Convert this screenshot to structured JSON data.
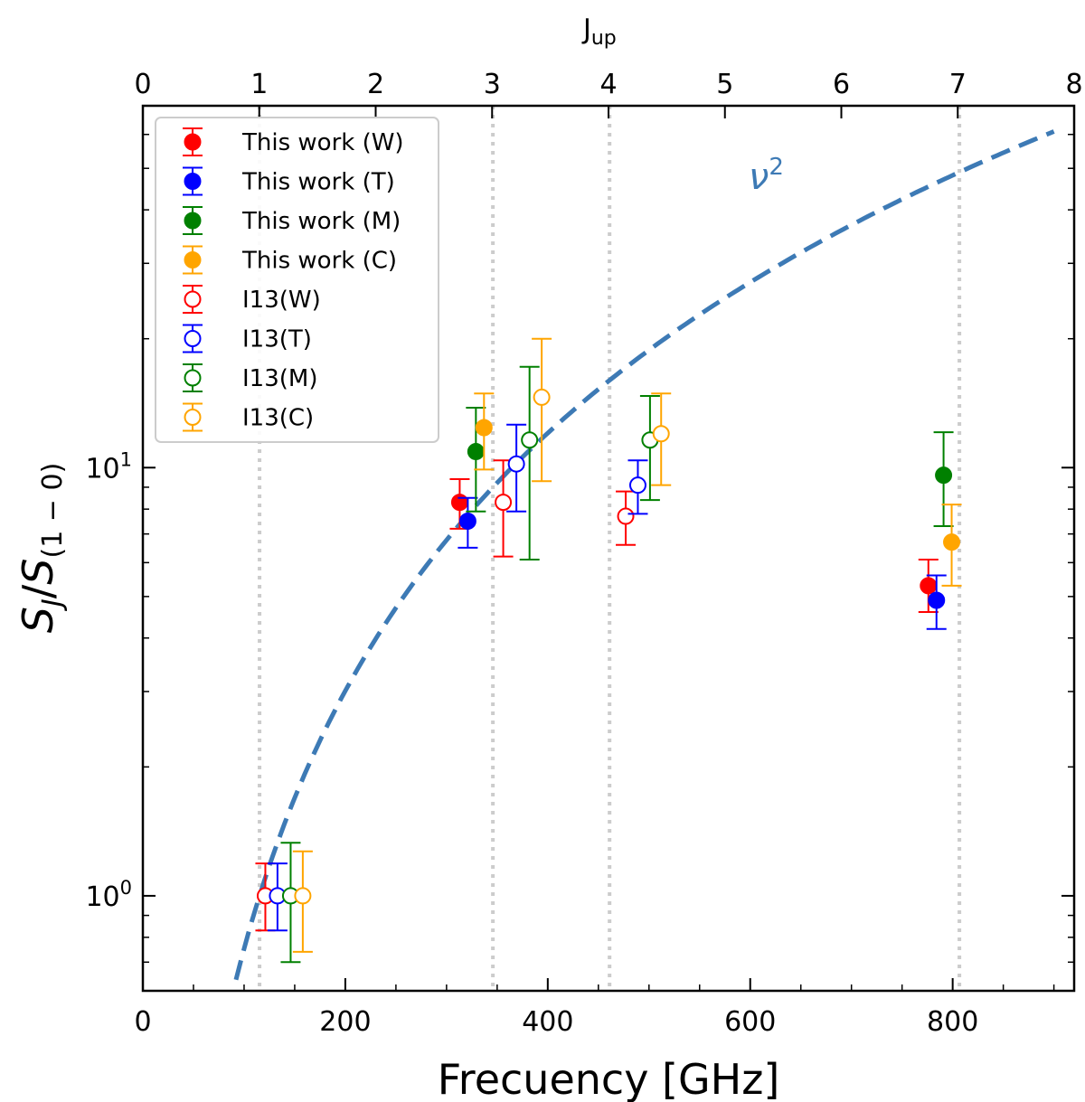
{
  "chart_data": {
    "type": "scatter",
    "xlabel": "Frecuency [GHz]",
    "ylabel_main": "S",
    "ylabel_sub_j": "J",
    "ylabel_sub_ref": "(1 − 0)",
    "top_xlabel": "J",
    "top_xlabel_sub": "up",
    "xlim": [
      0,
      920
    ],
    "ylim_log": [
      0.6,
      70
    ],
    "x_ticks": [
      0,
      200,
      400,
      600,
      800
    ],
    "x_tick_labels": [
      "0",
      "200",
      "400",
      "600",
      "800"
    ],
    "top_ticks": [
      0,
      1,
      2,
      3,
      4,
      5,
      6,
      7,
      8
    ],
    "top_tick_labels": [
      "0",
      "1",
      "2",
      "3",
      "4",
      "5",
      "6",
      "7",
      "8"
    ],
    "y_ticks": [
      1,
      10
    ],
    "y_tick_base": "10",
    "y_tick_exponents": [
      "0",
      "1"
    ],
    "reference_lines_ghz": [
      115.27,
      345.8,
      461.04,
      806.65
    ],
    "curve": {
      "label_main": "ν",
      "label_exp": "2",
      "color": "#3d7ab5",
      "type": "nu_squared",
      "ref_freq_ghz": 115.27
    },
    "legend": [
      {
        "label": "This work (W)",
        "color": "#ff0000",
        "filled": true
      },
      {
        "label": "This work (T)",
        "color": "#0000ff",
        "filled": true
      },
      {
        "label": "This work (M)",
        "color": "#008000",
        "filled": true
      },
      {
        "label": "This work (C)",
        "color": "#ffa500",
        "filled": true
      },
      {
        "label": "I13(W)",
        "color": "#ff0000",
        "filled": false
      },
      {
        "label": "I13(T)",
        "color": "#0000ff",
        "filled": false
      },
      {
        "label": "I13(M)",
        "color": "#008000",
        "filled": false
      },
      {
        "label": "I13(C)",
        "color": "#ffa500",
        "filled": false
      }
    ],
    "series": [
      {
        "name": "This work (W)",
        "color": "#ff0000",
        "filled": true,
        "points": [
          {
            "x": 313,
            "y": 8.3,
            "lo": 7.2,
            "hi": 9.4
          },
          {
            "x": 776,
            "y": 5.3,
            "lo": 4.6,
            "hi": 6.1
          }
        ]
      },
      {
        "name": "This work (T)",
        "color": "#0000ff",
        "filled": true,
        "points": [
          {
            "x": 321,
            "y": 7.5,
            "lo": 6.5,
            "hi": 8.5
          },
          {
            "x": 784,
            "y": 4.9,
            "lo": 4.2,
            "hi": 5.6
          }
        ]
      },
      {
        "name": "This work (M)",
        "color": "#008000",
        "filled": true,
        "points": [
          {
            "x": 329,
            "y": 10.9,
            "lo": 7.9,
            "hi": 13.8
          },
          {
            "x": 791,
            "y": 9.6,
            "lo": 7.3,
            "hi": 12.1
          }
        ]
      },
      {
        "name": "This work (C)",
        "color": "#ffa500",
        "filled": true,
        "points": [
          {
            "x": 337,
            "y": 12.4,
            "lo": 9.9,
            "hi": 14.9
          },
          {
            "x": 799,
            "y": 6.7,
            "lo": 5.3,
            "hi": 8.2
          }
        ]
      },
      {
        "name": "I13(W)",
        "color": "#ff0000",
        "filled": false,
        "points": [
          {
            "x": 121,
            "y": 1.0,
            "lo": 0.83,
            "hi": 1.19
          },
          {
            "x": 356,
            "y": 8.3,
            "lo": 6.2,
            "hi": 10.4
          },
          {
            "x": 477,
            "y": 7.7,
            "lo": 6.6,
            "hi": 8.8
          }
        ]
      },
      {
        "name": "I13(T)",
        "color": "#0000ff",
        "filled": false,
        "points": [
          {
            "x": 133,
            "y": 1.0,
            "lo": 0.83,
            "hi": 1.19
          },
          {
            "x": 369,
            "y": 10.2,
            "lo": 7.9,
            "hi": 12.6
          },
          {
            "x": 489,
            "y": 9.1,
            "lo": 7.8,
            "hi": 10.4
          }
        ]
      },
      {
        "name": "I13(M)",
        "color": "#008000",
        "filled": false,
        "points": [
          {
            "x": 146,
            "y": 1.0,
            "lo": 0.7,
            "hi": 1.33
          },
          {
            "x": 382,
            "y": 11.6,
            "lo": 6.1,
            "hi": 17.2
          },
          {
            "x": 501,
            "y": 11.6,
            "lo": 8.4,
            "hi": 14.7
          }
        ]
      },
      {
        "name": "I13(C)",
        "color": "#ffa500",
        "filled": false,
        "points": [
          {
            "x": 158,
            "y": 1.0,
            "lo": 0.74,
            "hi": 1.27
          },
          {
            "x": 394,
            "y": 14.6,
            "lo": 9.3,
            "hi": 20.0
          },
          {
            "x": 512,
            "y": 12.0,
            "lo": 9.1,
            "hi": 14.9
          }
        ]
      }
    ]
  }
}
